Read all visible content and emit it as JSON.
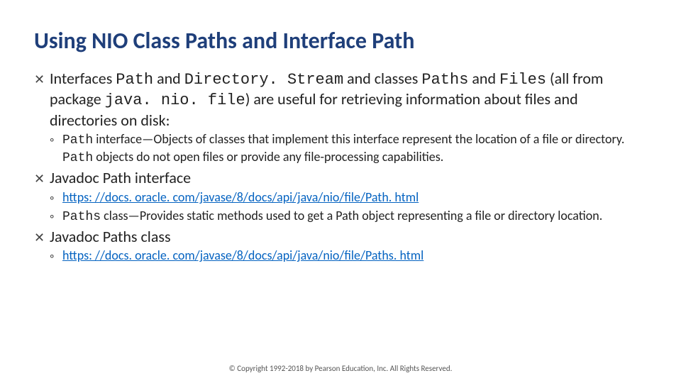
{
  "title": "Using NIO Class Paths and Interface Path",
  "colors": {
    "title": "#1f3f7a",
    "body_text": "#222222",
    "link": "#0563c1",
    "background": "#ffffff"
  },
  "typography": {
    "title_fontsize": 32,
    "body_fontsize": 22,
    "sub_fontsize": 18,
    "copyright_fontsize": 11,
    "mono_family": "Consolas"
  },
  "top_bullet_glyph": "✕",
  "sub_bullet_glyph": "◦",
  "bullets": [
    {
      "segments": [
        {
          "t": "Interfaces "
        },
        {
          "t": "Path",
          "mono": true
        },
        {
          "t": " and "
        },
        {
          "t": "Directory. Stream",
          "mono": true
        },
        {
          "t": " and classes "
        },
        {
          "t": "Paths",
          "mono": true
        },
        {
          "t": " and "
        },
        {
          "t": "Files",
          "mono": true
        },
        {
          "t": " (all from package "
        },
        {
          "t": "java. nio. file",
          "mono": true
        },
        {
          "t": ") are useful for retrieving information about files and directories on disk:"
        }
      ],
      "subs": [
        {
          "segments": [
            {
              "t": "Path",
              "mono": true
            },
            {
              "t": " interface—Objects of classes that implement this interface represent the location of a file or directory. "
            },
            {
              "t": "Path",
              "mono": true
            },
            {
              "t": " objects do not open files or provide any file-processing capabilities."
            }
          ]
        }
      ]
    },
    {
      "segments": [
        {
          "t": "Javadoc Path interface"
        }
      ],
      "subs": [
        {
          "segments": [
            {
              "t": "https: //docs. oracle. com/javase/8/docs/api/java/nio/file/Path. html",
              "link": true
            }
          ]
        },
        {
          "segments": [
            {
              "t": "Paths",
              "mono": true
            },
            {
              "t": " class—Provides static methods used to get a Path object representing a file or directory location."
            }
          ]
        }
      ]
    },
    {
      "segments": [
        {
          "t": "Javadoc Paths class"
        }
      ],
      "subs": [
        {
          "segments": [
            {
              "t": "https: //docs. oracle. com/javase/8/docs/api/java/nio/file/Paths. html",
              "link": true
            }
          ]
        }
      ]
    }
  ],
  "copyright": "© Copyright 1992-2018 by Pearson Education, Inc. All Rights Reserved."
}
